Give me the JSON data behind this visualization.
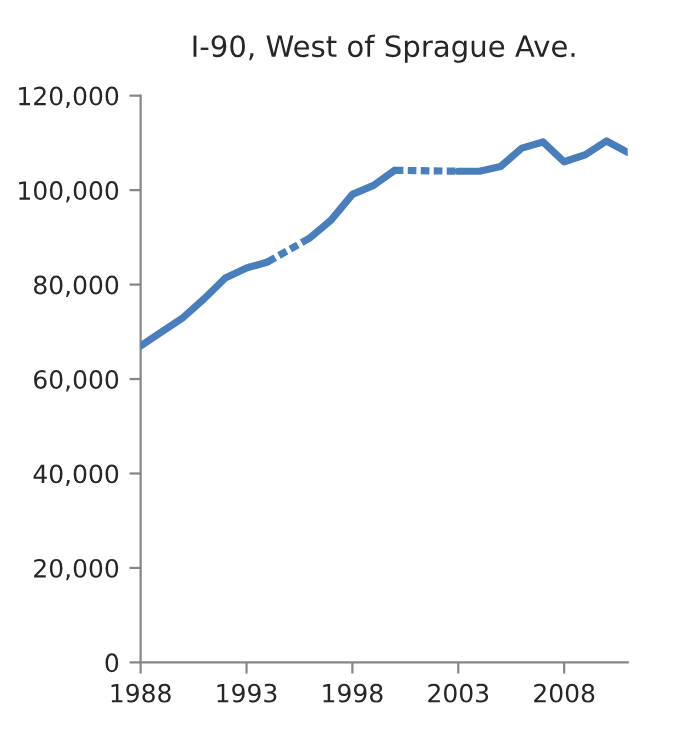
{
  "chart_data": {
    "type": "line",
    "title": "I-90, West of Sprague Ave.",
    "series": [
      {
        "color": "#4a7ebb",
        "line_style": "solid",
        "x": [
          1988,
          1989,
          1990,
          1991,
          1992,
          1993,
          1994,
          1995,
          1996,
          1997,
          1998,
          1999,
          2000,
          2001,
          2002,
          2003,
          2004,
          2005,
          2006,
          2007,
          2008,
          2009,
          2010,
          2011
        ],
        "values": [
          67000,
          70000,
          73000,
          77000,
          81400,
          83500,
          84800,
          null,
          89900,
          93700,
          99100,
          101000,
          104200,
          null,
          null,
          104000,
          104000,
          105000,
          108900,
          110200,
          106000,
          107500,
          110400,
          108000
        ]
      },
      {
        "color": "#4b7fbc",
        "line_style": "dotted",
        "x": [
          1994,
          1996
        ],
        "values": [
          84800,
          89900
        ]
      },
      {
        "color": "#4b7fbc",
        "line_style": "dotted",
        "x": [
          2000,
          2003
        ],
        "values": [
          104200,
          104000
        ]
      }
    ],
    "xlim": [
      1988,
      2011
    ],
    "xticks": [
      1988,
      1993,
      1998,
      2003,
      2008
    ],
    "ylim": [
      0,
      120000
    ],
    "yticks": [
      {
        "value": 0,
        "label": "0"
      },
      {
        "value": 20000,
        "label": "20,000"
      },
      {
        "value": 40000,
        "label": "40,000"
      },
      {
        "value": 60000,
        "label": "60,000"
      },
      {
        "value": 80000,
        "label": "80,000"
      },
      {
        "value": 100000,
        "label": "100,000"
      },
      {
        "value": 120000,
        "label": "120,000"
      }
    ],
    "grid": false,
    "marker": "none"
  }
}
